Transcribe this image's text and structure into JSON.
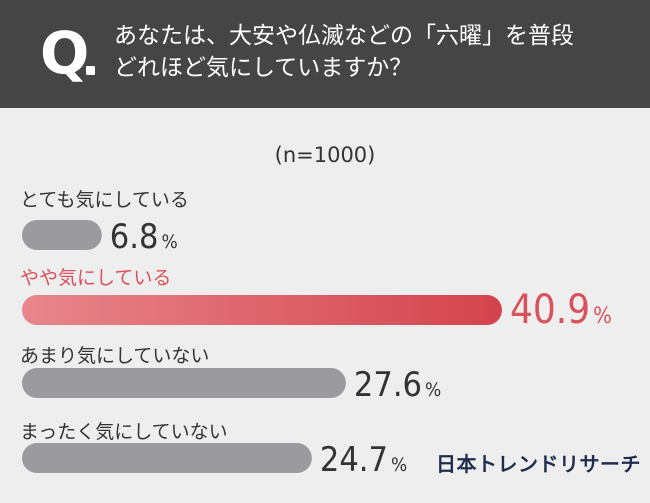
{
  "header": {
    "q_letter": "Q",
    "question_lines": [
      "あなたは、大安や仏滅などの「六曜」を普段",
      "どれほど気にしていますか？"
    ]
  },
  "sample_size": "(n=1000)",
  "brand": "日本トレンドリサーチ",
  "colors": {
    "header_bg": "#454545",
    "panel_bg": "#eeeeee",
    "bar_gray": "#9b9b9f",
    "bar_highlight_start": "#e8868c",
    "bar_highlight_end": "#d4434d",
    "highlight_text": "#d9515a",
    "text": "#333333"
  },
  "chart_data": {
    "type": "bar",
    "orientation": "horizontal",
    "unit": "%",
    "categories": [
      "とても気にしている",
      "やや気にしている",
      "あまり気にしていない",
      "まったく気にしていない"
    ],
    "values": [
      6.8,
      40.9,
      27.6,
      24.7
    ],
    "value_labels": [
      "6.8",
      "40.9",
      "27.6",
      "24.7"
    ],
    "highlight_index": 1
  }
}
